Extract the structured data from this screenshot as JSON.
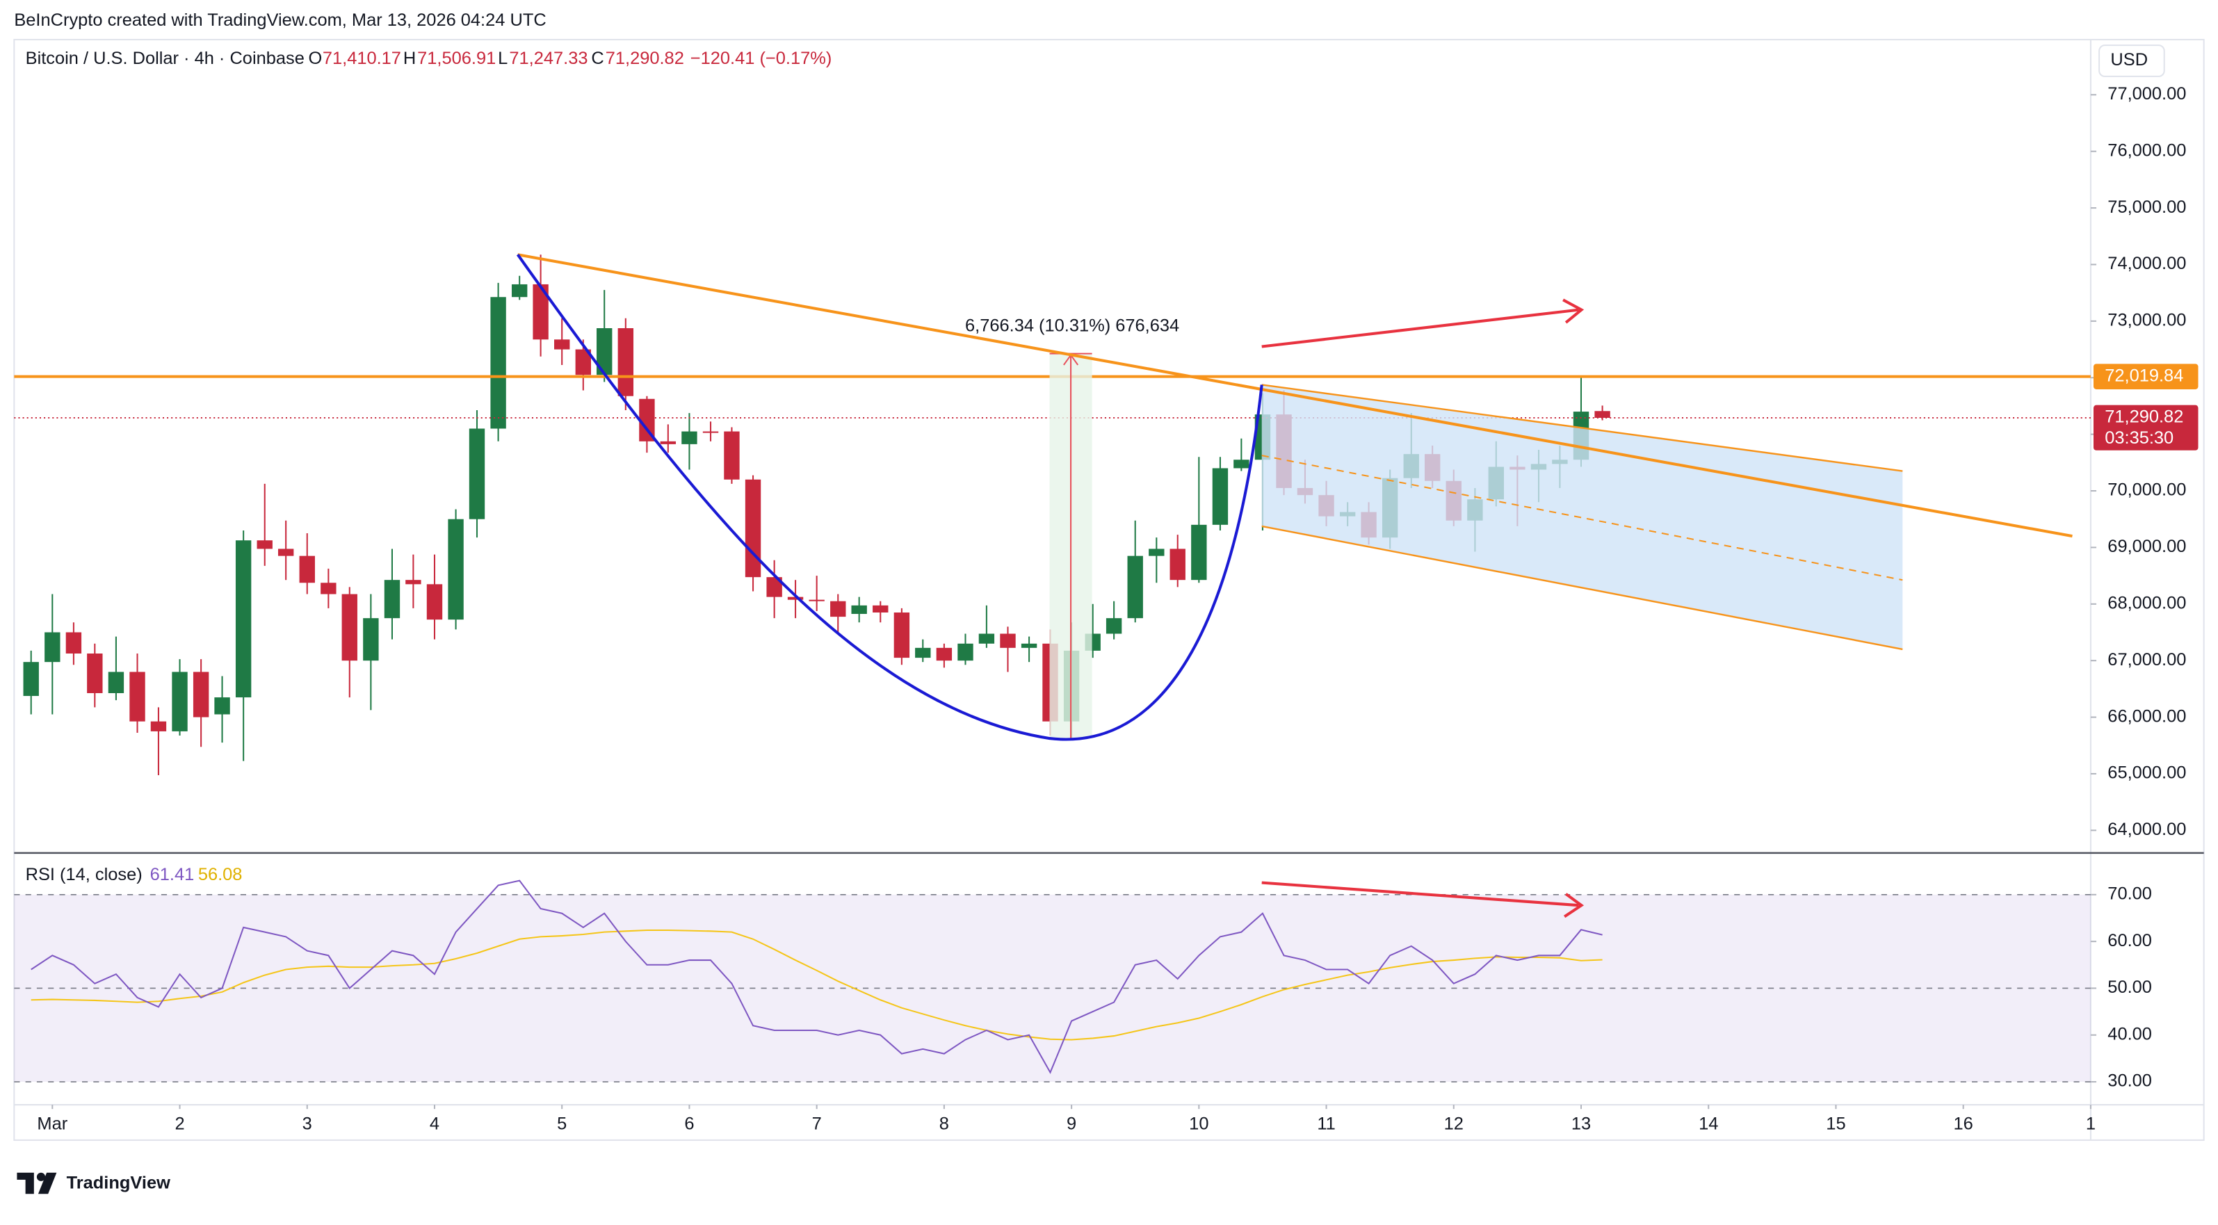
{
  "header": {
    "credit": "BeInCrypto created with TradingView.com, Mar 13, 2026 04:24 UTC",
    "brand": "TradingView"
  },
  "chart_data": [
    {
      "type": "candlestick",
      "title": "Bitcoin / U.S. Dollar · 4h · Coinbase",
      "ohlc_labels": {
        "o": "O",
        "o_value": "71,410.17",
        "h": "H",
        "h_value": "71,506.91",
        "l": "L",
        "l_value": "71,247.33",
        "c": "C",
        "c_value": "71,290.82",
        "change": "−120.41 (−0.17%)"
      },
      "currency": "USD",
      "up_color": "#1f7a45",
      "down_color": "#c8283c",
      "x": [
        0.833,
        1,
        1.167,
        1.333,
        1.5,
        1.667,
        1.833,
        2,
        2.167,
        2.333,
        2.5,
        2.667,
        2.833,
        3,
        3.167,
        3.333,
        3.5,
        3.667,
        3.833,
        4,
        4.167,
        4.333,
        4.5,
        4.667,
        4.833,
        5,
        5.167,
        5.333,
        5.5,
        5.667,
        5.833,
        6,
        6.167,
        6.333,
        6.5,
        6.667,
        6.833,
        7,
        7.167,
        7.333,
        7.5,
        7.667,
        7.833,
        8,
        8.167,
        8.333,
        8.5,
        8.667,
        8.833,
        9,
        9.167,
        9.333,
        9.5,
        9.667,
        9.833,
        10,
        10.167,
        10.333,
        10.5,
        10.667,
        10.833,
        11,
        11.167,
        11.333,
        11.5,
        11.667,
        11.833,
        12,
        12.167,
        12.333,
        12.5,
        12.667,
        12.833,
        13,
        13.167
      ],
      "open": [
        66375,
        66975,
        67500,
        67125,
        66425,
        66800,
        65925,
        65750,
        66800,
        66050,
        66350,
        69125,
        68975,
        68850,
        68375,
        68175,
        67000,
        67750,
        68425,
        68350,
        67725,
        69500,
        71100,
        73425,
        73650,
        72675,
        72500,
        72050,
        72875,
        71625,
        70875,
        70825,
        71050,
        71050,
        70200,
        68475,
        68125,
        68075,
        68050,
        67825,
        67975,
        67850,
        67050,
        67225,
        67000,
        67300,
        67475,
        67225,
        67300,
        65925,
        67175,
        67475,
        67750,
        68850,
        68975,
        68425,
        69400,
        70400,
        70550,
        71350,
        70050,
        69925,
        69550,
        69625,
        69175,
        70225,
        70650,
        70175,
        69475,
        69850,
        70425,
        70375,
        70475,
        70550,
        71410.17
      ],
      "high": [
        67175,
        68175,
        67675,
        67300,
        67425,
        67125,
        66175,
        67025,
        67025,
        66725,
        69300,
        70125,
        69475,
        69250,
        68625,
        68300,
        68175,
        68975,
        68875,
        68875,
        69675,
        71425,
        73675,
        73800,
        74175,
        73050,
        72675,
        73550,
        73050,
        71675,
        71175,
        71375,
        71225,
        71125,
        70275,
        68775,
        68425,
        68500,
        68175,
        68125,
        68050,
        67925,
        67375,
        67300,
        67475,
        67975,
        67600,
        67425,
        67550,
        67675,
        68000,
        68050,
        69475,
        69175,
        69225,
        70600,
        70600,
        70925,
        71725,
        71775,
        70550,
        70175,
        69800,
        69800,
        70375,
        71375,
        70800,
        70375,
        70050,
        70875,
        70625,
        70725,
        70800,
        72000,
        71506.91
      ],
      "low": [
        66050,
        66050,
        66925,
        66175,
        66300,
        65725,
        64975,
        65675,
        65475,
        65550,
        65225,
        68675,
        68425,
        68175,
        67925,
        66350,
        66125,
        67375,
        67925,
        67375,
        67550,
        69175,
        70875,
        73375,
        72375,
        72225,
        71775,
        71925,
        71425,
        70675,
        70675,
        70375,
        70875,
        70125,
        68225,
        67750,
        67750,
        67875,
        67475,
        67675,
        67675,
        66925,
        66975,
        66875,
        66925,
        67225,
        66800,
        66975,
        65675,
        65625,
        67050,
        67375,
        67675,
        68375,
        68300,
        68375,
        69300,
        70350,
        69300,
        69925,
        69775,
        69375,
        69375,
        69050,
        68975,
        70050,
        70050,
        69375,
        68925,
        69725,
        69375,
        69800,
        70050,
        70425,
        71247.33
      ],
      "close": [
        66975,
        67500,
        67125,
        66425,
        66800,
        65925,
        65750,
        66800,
        66000,
        66350,
        69125,
        68975,
        68850,
        68375,
        68175,
        67000,
        67750,
        68425,
        68350,
        67725,
        69500,
        71100,
        73425,
        73650,
        72675,
        72500,
        72050,
        72875,
        71675,
        70875,
        70825,
        71050,
        71025,
        70200,
        68475,
        68125,
        68075,
        68050,
        67775,
        67975,
        67850,
        67050,
        67225,
        67000,
        67300,
        67475,
        67225,
        67300,
        65925,
        67175,
        67475,
        67750,
        68850,
        68975,
        68425,
        69400,
        70400,
        70550,
        71350,
        70050,
        69925,
        69550,
        69625,
        69175,
        70225,
        70650,
        70175,
        69475,
        69850,
        70425,
        70375,
        70475,
        70550,
        71400,
        71290.82
      ],
      "xlim": [
        0.7,
        17.0
      ],
      "ylim": [
        63650,
        77950
      ],
      "yticks": [
        {
          "value": 64000,
          "label": "64,000.00"
        },
        {
          "value": 65000,
          "label": "65,000.00"
        },
        {
          "value": 66000,
          "label": "66,000.00"
        },
        {
          "value": 67000,
          "label": "67,000.00"
        },
        {
          "value": 68000,
          "label": "68,000.00"
        },
        {
          "value": 69000,
          "label": "69,000.00"
        },
        {
          "value": 70000,
          "label": "70,000.00"
        },
        {
          "value": 71000,
          "label": "71,000.00"
        },
        {
          "value": 72000,
          "label": "72,000.00"
        },
        {
          "value": 73000,
          "label": "73,000.00"
        },
        {
          "value": 74000,
          "label": "74,000.00"
        },
        {
          "value": 75000,
          "label": "75,000.00"
        },
        {
          "value": 76000,
          "label": "76,000.00"
        },
        {
          "value": 77000,
          "label": "77,000.00"
        }
      ],
      "grid": false,
      "price_lines": [
        {
          "value": 72019.84,
          "label": "72,019.84",
          "color": "#f7931a",
          "style": "solid"
        },
        {
          "value": 71290.82,
          "label": "71,290.82",
          "countdown": "03:35:30",
          "color": "#c8283c",
          "style": "dotted"
        }
      ],
      "annotations": [
        {
          "text": "6,766.34 (10.31%) 676,634"
        }
      ]
    },
    {
      "type": "line",
      "title": "RSI (14, close)",
      "series": [
        {
          "name": "RSI",
          "color": "#7e57c2",
          "values": [
            54,
            57,
            55,
            51,
            53,
            48,
            46,
            53,
            48,
            50,
            63,
            62,
            61,
            58,
            57,
            50,
            54,
            58,
            57,
            53,
            62,
            67,
            72,
            73,
            67,
            66,
            63,
            66,
            60,
            55,
            55,
            56,
            56,
            51,
            42,
            41,
            41,
            41,
            40,
            41,
            40,
            36,
            37,
            36,
            39,
            41,
            39,
            40,
            32,
            43,
            45,
            47,
            55,
            56,
            52,
            57,
            61,
            62,
            66,
            57,
            56,
            54,
            54,
            51,
            57,
            59,
            56,
            51,
            53,
            57,
            56,
            57,
            57,
            62.5,
            61.41
          ]
        },
        {
          "name": "RSI-based MA",
          "color": "#f5c518",
          "values": [
            47.5,
            47.6,
            47.5,
            47.4,
            47.2,
            47.0,
            47.2,
            47.8,
            48.3,
            49.2,
            51.2,
            52.8,
            54.0,
            54.5,
            54.7,
            54.5,
            54.5,
            54.8,
            55.0,
            55.3,
            56.3,
            57.5,
            59.0,
            60.5,
            61.0,
            61.2,
            61.5,
            62.0,
            62.2,
            62.4,
            62.4,
            62.3,
            62.2,
            62.0,
            60.5,
            58.3,
            56.0,
            53.8,
            51.5,
            49.5,
            47.5,
            45.8,
            44.5,
            43.2,
            42.0,
            41.0,
            40.2,
            39.6,
            39.1,
            39.0,
            39.3,
            39.8,
            40.8,
            41.8,
            42.6,
            43.6,
            45.0,
            46.5,
            48.2,
            49.7,
            50.8,
            51.8,
            52.8,
            53.5,
            54.4,
            55.1,
            55.7,
            56.0,
            56.4,
            56.7,
            56.6,
            56.6,
            56.5,
            55.9,
            56.08
          ]
        }
      ],
      "ylim": [
        26,
        78
      ],
      "yticks": [
        {
          "value": 30,
          "label": "30.00"
        },
        {
          "value": 40,
          "label": "40.00"
        },
        {
          "value": 50,
          "label": "50.00"
        },
        {
          "value": 60,
          "label": "60.00"
        },
        {
          "value": 70,
          "label": "70.00"
        }
      ],
      "levels": [
        70,
        50,
        30
      ],
      "band_color": "#7e57c2",
      "xlim": [
        0.7,
        17.0
      ],
      "xticks": [
        {
          "value": 1,
          "label": "Mar"
        },
        2,
        3,
        4,
        5,
        6,
        7,
        8,
        9,
        10,
        11,
        12,
        13,
        14,
        15,
        16,
        {
          "value": 17,
          "label": "1"
        }
      ]
    }
  ]
}
